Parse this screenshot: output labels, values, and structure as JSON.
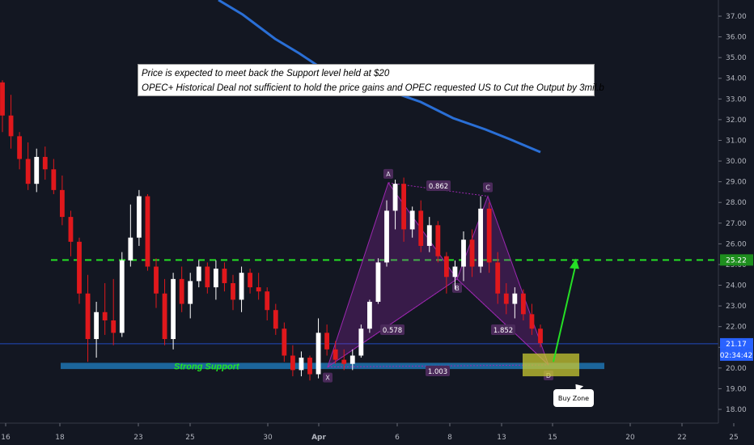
{
  "chart_data": {
    "type": "candlestick",
    "ylim": [
      17.6,
      37.7
    ],
    "y_ticks": [
      "18.00",
      "19.00",
      "20.00",
      "21.00",
      "22.00",
      "23.00",
      "24.00",
      "25.00",
      "26.00",
      "27.00",
      "28.00",
      "29.00",
      "30.00",
      "31.00",
      "32.00",
      "33.00",
      "34.00",
      "35.00",
      "36.00",
      "37.00"
    ],
    "x_ticks": [
      "16",
      "18",
      "23",
      "25",
      "30",
      "Apr",
      "6",
      "8",
      "13",
      "15",
      "20",
      "22",
      "25"
    ],
    "annotation_lines": [
      "Price is expected to meet back the Support level held at $20",
      "OPEC+ Historical Deal not sufficient to hold the price gains and OPEC requested US to Cut the Output by 3mil.b"
    ],
    "price_labels": {
      "target": "25.22",
      "current": "21.17",
      "countdown": "02:34:42"
    },
    "levels": {
      "resistance": 25.22,
      "current": 21.17,
      "support_zone": [
        19.95,
        20.25
      ]
    },
    "support_label": "Strong Support",
    "pattern": {
      "points": [
        {
          "name": "X",
          "value": 20.05
        },
        {
          "name": "A",
          "value": 28.95
        },
        {
          "name": "B",
          "value": 24.3
        },
        {
          "name": "C",
          "value": 28.3
        },
        {
          "name": "D",
          "value": 20.15
        }
      ],
      "ratios": [
        "0.862",
        "0.578",
        "1.852",
        "1.003"
      ]
    },
    "buy_zone_label": "Buy Zone",
    "colors": {
      "up": "#ffffff",
      "down": "#e0181c",
      "ma": "#2a6fd6",
      "resistance": "#25e025",
      "pattern": "#9c27b0",
      "support": "#1e6ea8",
      "buyzone": "#c8c832"
    },
    "candles": [
      [
        33.8,
        33.9,
        31.4,
        32.2
      ],
      [
        32.2,
        33.2,
        30.6,
        31.2
      ],
      [
        31.2,
        31.4,
        29.6,
        30.1
      ],
      [
        30.1,
        30.9,
        28.6,
        28.9
      ],
      [
        28.9,
        30.6,
        28.5,
        30.2
      ],
      [
        30.2,
        30.7,
        29.1,
        29.6
      ],
      [
        29.6,
        30.1,
        28.4,
        28.6
      ],
      [
        28.6,
        29.3,
        26.9,
        27.3
      ],
      [
        27.3,
        27.6,
        25.4,
        26.1
      ],
      [
        26.1,
        26.3,
        23.1,
        23.6
      ],
      [
        23.6,
        24.5,
        20.3,
        21.4
      ],
      [
        21.4,
        23.2,
        20.5,
        22.7
      ],
      [
        22.7,
        24.1,
        21.6,
        22.3
      ],
      [
        22.3,
        24.3,
        21.1,
        21.7
      ],
      [
        21.7,
        25.6,
        21.5,
        25.2
      ],
      [
        25.2,
        27.9,
        24.9,
        26.3
      ],
      [
        26.3,
        28.6,
        25.9,
        28.3
      ],
      [
        28.3,
        28.4,
        24.7,
        24.9
      ],
      [
        24.9,
        25.3,
        22.9,
        23.6
      ],
      [
        23.6,
        24.3,
        21.1,
        21.4
      ],
      [
        21.4,
        24.6,
        20.9,
        24.3
      ],
      [
        24.3,
        24.9,
        22.7,
        23.1
      ],
      [
        23.1,
        24.6,
        22.4,
        24.2
      ],
      [
        24.2,
        25.2,
        23.9,
        24.9
      ],
      [
        24.9,
        25.1,
        23.6,
        23.9
      ],
      [
        23.9,
        25.2,
        23.3,
        24.8
      ],
      [
        24.8,
        25.1,
        23.7,
        24.1
      ],
      [
        24.1,
        24.5,
        22.8,
        23.3
      ],
      [
        23.3,
        24.9,
        22.7,
        24.6
      ],
      [
        24.6,
        24.8,
        23.6,
        23.9
      ],
      [
        23.9,
        24.6,
        23.3,
        23.7
      ],
      [
        23.7,
        23.9,
        22.3,
        22.8
      ],
      [
        22.8,
        23.1,
        21.6,
        21.9
      ],
      [
        21.9,
        22.2,
        20.3,
        20.6
      ],
      [
        20.6,
        21.1,
        19.6,
        19.9
      ],
      [
        19.9,
        20.8,
        19.6,
        20.5
      ],
      [
        20.5,
        20.6,
        19.4,
        19.7
      ],
      [
        19.7,
        22.4,
        19.5,
        21.7
      ],
      [
        21.7,
        22.1,
        20.6,
        20.9
      ],
      [
        20.9,
        21.3,
        20.2,
        20.4
      ],
      [
        20.4,
        20.9,
        19.9,
        20.2
      ],
      [
        20.2,
        20.9,
        19.9,
        20.6
      ],
      [
        20.6,
        22.1,
        20.5,
        21.9
      ],
      [
        21.9,
        23.3,
        21.7,
        23.2
      ],
      [
        23.2,
        25.3,
        23.1,
        25.1
      ],
      [
        25.1,
        28.1,
        24.9,
        27.6
      ],
      [
        27.6,
        29.1,
        26.7,
        28.9
      ],
      [
        28.9,
        29.2,
        26.1,
        26.7
      ],
      [
        26.7,
        27.8,
        26.3,
        27.6
      ],
      [
        27.6,
        28.1,
        25.6,
        25.9
      ],
      [
        25.9,
        27.3,
        25.6,
        26.9
      ],
      [
        26.9,
        27.1,
        25.1,
        25.4
      ],
      [
        25.4,
        25.6,
        23.6,
        24.4
      ],
      [
        24.4,
        25.2,
        23.8,
        24.9
      ],
      [
        24.9,
        26.6,
        24.2,
        26.2
      ],
      [
        26.2,
        26.7,
        24.4,
        24.9
      ],
      [
        24.9,
        28.3,
        24.6,
        27.7
      ],
      [
        27.7,
        28.0,
        24.6,
        25.1
      ],
      [
        25.1,
        25.6,
        23.1,
        23.6
      ],
      [
        23.6,
        24.1,
        22.6,
        23.1
      ],
      [
        23.1,
        23.9,
        22.4,
        23.6
      ],
      [
        23.6,
        23.8,
        22.3,
        22.6
      ],
      [
        22.6,
        23.1,
        21.6,
        21.9
      ],
      [
        21.9,
        22.1,
        21.0,
        21.2
      ]
    ]
  }
}
